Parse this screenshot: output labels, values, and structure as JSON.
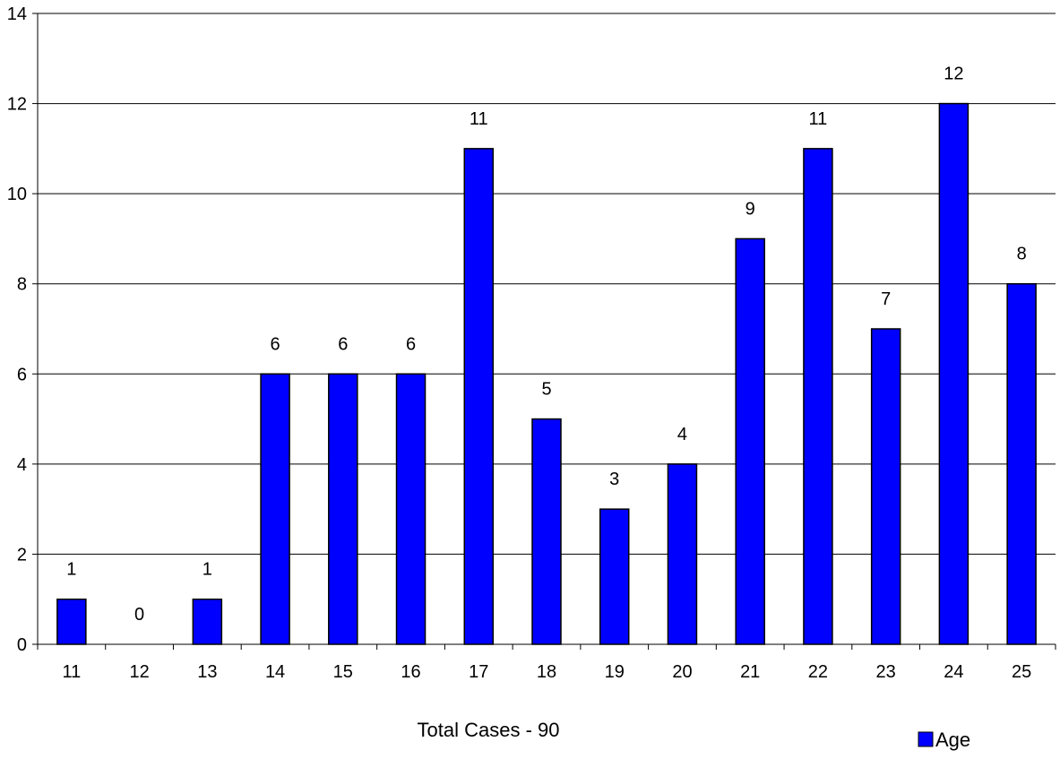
{
  "chart_data": {
    "type": "bar",
    "categories": [
      "11",
      "12",
      "13",
      "14",
      "15",
      "16",
      "17",
      "18",
      "19",
      "20",
      "21",
      "22",
      "23",
      "24",
      "25"
    ],
    "series": [
      {
        "name": "Age",
        "values": [
          1,
          0,
          1,
          6,
          6,
          6,
          11,
          5,
          3,
          4,
          9,
          11,
          7,
          12,
          8
        ]
      }
    ],
    "title": "",
    "xlabel": "Total Cases - 90",
    "ylabel": "",
    "ylim": [
      0,
      14
    ],
    "yticks": [
      "0",
      "2",
      "4",
      "6",
      "8",
      "10",
      "12",
      "14"
    ],
    "grid": true,
    "data_labels": true,
    "legend": {
      "position": "bottom-right",
      "entries": [
        "Age"
      ]
    },
    "colors": {
      "bar": "#0000ff",
      "bar_border": "#000000",
      "grid": "#000000"
    }
  }
}
